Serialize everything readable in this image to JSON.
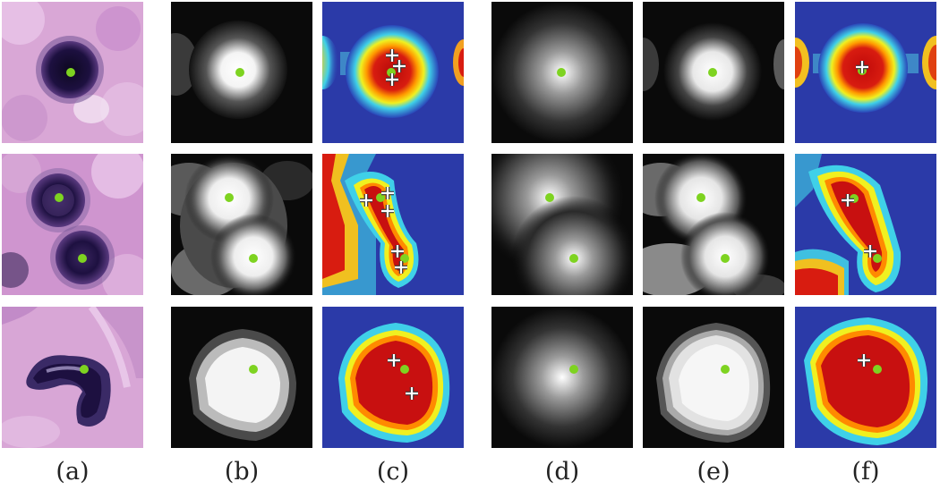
{
  "captions": [
    "(a)",
    "(b)",
    "(c)",
    "(d)",
    "(e)",
    "(f)"
  ],
  "colors": {
    "centroid": "#7ed321",
    "marker": "#ffffff",
    "marker_outline": "#333333",
    "tissue_pink": "#d9a0d2",
    "nucleus_dark": "#1a0f3a",
    "heat_low": "#2a3cb0",
    "heat_high": "#c01010"
  },
  "rows": [
    {
      "nuclei_count": 1,
      "description_icon": "single-round-nucleus"
    },
    {
      "nuclei_count": 2,
      "description_icon": "two-round-nuclei"
    },
    {
      "nuclei_count": 1,
      "description_icon": "lobed-nucleus"
    }
  ]
}
